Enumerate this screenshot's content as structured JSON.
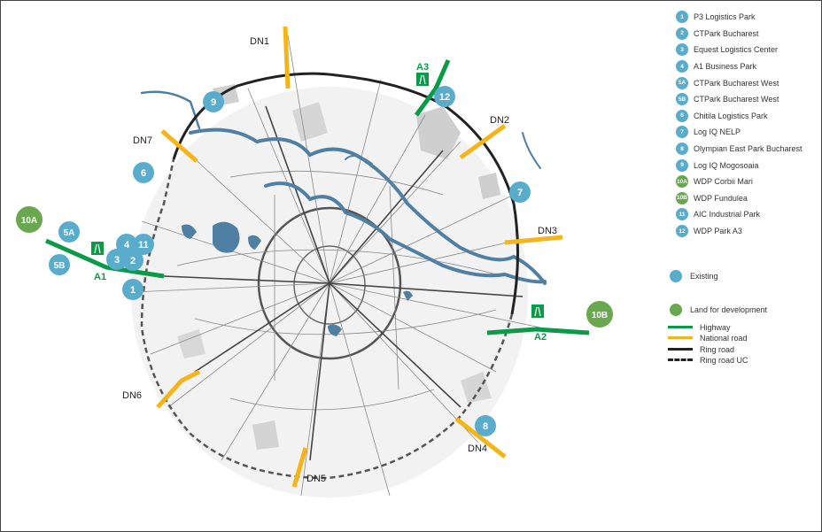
{
  "colors": {
    "existing": "#5aaccd",
    "land": "#6aa84f",
    "highway": "#0a9a48",
    "national_road": "#f5b41a",
    "ring_road": "#222222",
    "river": "#4f7fa3"
  },
  "legend": {
    "parks": [
      {
        "id": "1",
        "name": "P3 Logistics Park",
        "kind": "existing"
      },
      {
        "id": "2",
        "name": "CTPark Bucharest",
        "kind": "existing"
      },
      {
        "id": "3",
        "name": "Equest Logistics Center",
        "kind": "existing"
      },
      {
        "id": "4",
        "name": "A1 Business Park",
        "kind": "existing"
      },
      {
        "id": "5A",
        "name": "CTPark Bucharest West",
        "kind": "existing"
      },
      {
        "id": "5B",
        "name": "CTPark Bucharest West",
        "kind": "existing"
      },
      {
        "id": "6",
        "name": "Chitila Logistics Park",
        "kind": "existing"
      },
      {
        "id": "7",
        "name": "Log IQ NELP",
        "kind": "existing"
      },
      {
        "id": "8",
        "name": "Olympian East Park Bucharest",
        "kind": "existing"
      },
      {
        "id": "9",
        "name": "Log IQ Mogosoaia",
        "kind": "existing"
      },
      {
        "id": "10A",
        "name": "WDP Corbii Mari",
        "kind": "land"
      },
      {
        "id": "10B",
        "name": "WDP Fundulea",
        "kind": "land"
      },
      {
        "id": "11",
        "name": "AIC Industrial Park",
        "kind": "existing"
      },
      {
        "id": "12",
        "name": "WDP Park A3",
        "kind": "existing"
      }
    ],
    "existing_label": "Existing",
    "land_label": "Land for development",
    "highway_label": "Highway",
    "national_road_label": "National road",
    "ring_road_label": "Ring road",
    "ring_road_uc_label": "Ring road UC"
  },
  "road_labels": {
    "dn1": "DN1",
    "dn2": "DN2",
    "dn3": "DN3",
    "dn4": "DN4",
    "dn5": "DN5",
    "dn6": "DN6",
    "dn7": "DN7",
    "a1": "A1",
    "a2": "A2",
    "a3": "A3"
  },
  "markers": {
    "m1": "1",
    "m2": "2",
    "m3": "3",
    "m4": "4",
    "m5a": "5A",
    "m5b": "5B",
    "m6": "6",
    "m7": "7",
    "m8": "8",
    "m9": "9",
    "m10a": "10A",
    "m10b": "10B",
    "m11": "11",
    "m12": "12"
  }
}
